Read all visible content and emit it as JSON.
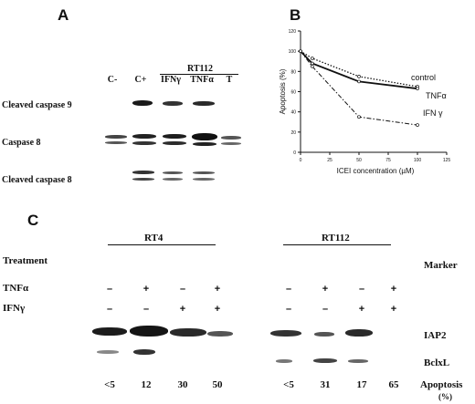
{
  "panel_a": {
    "letter": "A",
    "group_label": "RT112",
    "lanes": [
      "C-",
      "C+",
      "IFNγ",
      "TNFα",
      "T"
    ],
    "rows": [
      "Cleaved caspase 9",
      "Caspase 8",
      "Cleaved caspase 8"
    ]
  },
  "panel_b": {
    "letter": "B"
  },
  "chart_data": {
    "type": "line",
    "xlabel": "ICEI concentration (µM)",
    "ylabel": "Apoptosis (%)",
    "xlim": [
      0,
      125
    ],
    "ylim": [
      0,
      120
    ],
    "xticks": [
      0,
      25,
      50,
      75,
      100,
      125
    ],
    "yticks": [
      0,
      20,
      40,
      60,
      80,
      100,
      120
    ],
    "series": [
      {
        "name": "control",
        "style": "dotted",
        "x": [
          0,
          10,
          50,
          100
        ],
        "y": [
          100,
          93,
          75,
          65
        ]
      },
      {
        "name": "TNFα",
        "style": "solid",
        "x": [
          0,
          10,
          50,
          100
        ],
        "y": [
          100,
          88,
          70,
          63
        ]
      },
      {
        "name": "IFN γ",
        "style": "dash-dot",
        "x": [
          0,
          10,
          50,
          100
        ],
        "y": [
          100,
          85,
          35,
          27
        ]
      }
    ]
  },
  "panel_c": {
    "letter": "C",
    "group_left": "RT4",
    "group_right": "RT112",
    "treatment_label": "Treatment",
    "marker_label": "Marker",
    "rows": [
      {
        "label": "TNFα",
        "left": [
          "–",
          "+",
          "–",
          "+"
        ],
        "right": [
          "–",
          "+",
          "–",
          "+"
        ]
      },
      {
        "label": "IFNγ",
        "left": [
          "–",
          "–",
          "+",
          "+"
        ],
        "right": [
          "–",
          "–",
          "+",
          "+"
        ]
      }
    ],
    "markers": [
      "IAP2",
      "BclxL"
    ],
    "apoptosis_left": [
      "<5",
      "12",
      "30",
      "50"
    ],
    "apoptosis_right": [
      "<5",
      "31",
      "17",
      "65"
    ],
    "apoptosis_label": "Apoptosis",
    "apoptosis_unit": "(%)"
  }
}
